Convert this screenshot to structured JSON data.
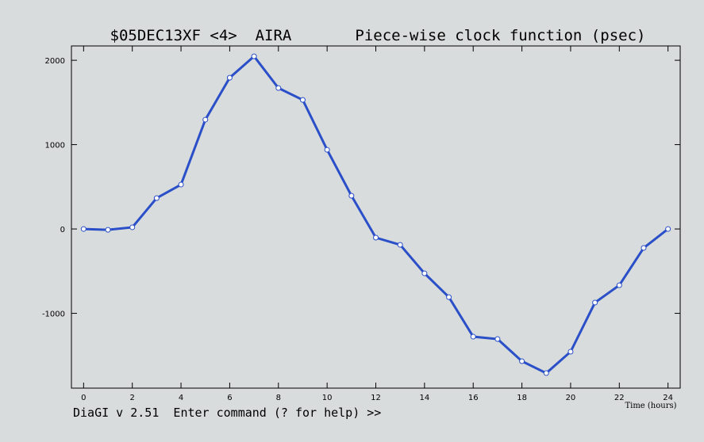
{
  "chart_data": {
    "type": "line",
    "title": "$05DEC13XF <4>  AIRA       Piece-wise clock function (psec)",
    "x_label": "Time (hours)",
    "footer": "DiaGI v 2.51  Enter command (? for help) >>",
    "x": [
      0,
      1,
      2,
      3,
      4,
      5,
      6,
      7,
      8,
      9,
      10,
      11,
      12,
      13,
      14,
      15,
      16,
      17,
      18,
      19,
      20,
      21,
      22,
      23,
      24
    ],
    "series": [
      {
        "color": "#2a4fc8",
        "values": [
          0,
          -10,
          20,
          366,
          526,
          1296,
          1793,
          2047,
          1671,
          1530,
          939,
          394,
          -103,
          -188,
          -526,
          -808,
          -1277,
          -1305,
          -1568,
          -1709,
          -1455,
          -873,
          -667,
          -225,
          0
        ]
      }
    ],
    "xlim": [
      -0.5,
      24.5
    ],
    "xticks": [
      0,
      2,
      4,
      6,
      8,
      10,
      12,
      14,
      16,
      18,
      20,
      22,
      24
    ],
    "ylim": [
      -1887,
      2170
    ],
    "yticks": [
      -1000,
      0,
      1000,
      2000
    ]
  }
}
